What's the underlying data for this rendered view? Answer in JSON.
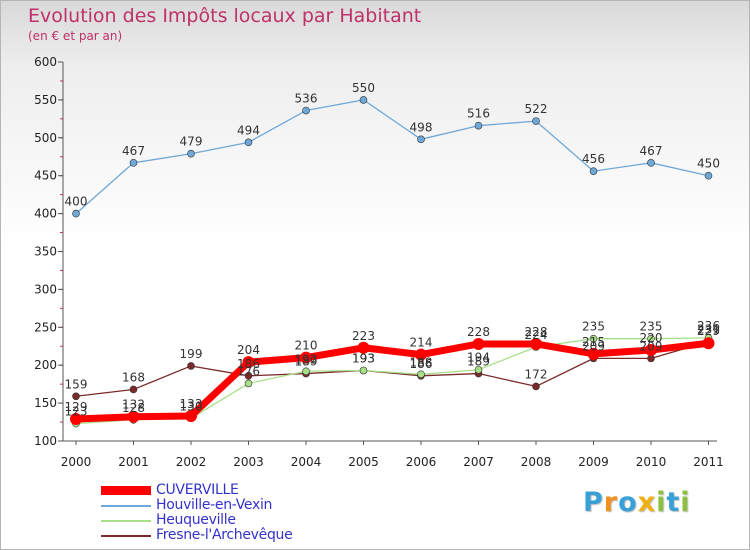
{
  "title": "Evolution des Impôts locaux par Habitant",
  "subtitle": "(en € et par an)",
  "brand": {
    "text": "Proxiti",
    "letters": [
      {
        "ch": "P",
        "color": "#3aa0d8"
      },
      {
        "ch": "r",
        "color": "#f09020"
      },
      {
        "ch": "o",
        "color": "#3aa0d8"
      },
      {
        "ch": "x",
        "color": "#f0b010"
      },
      {
        "ch": "i",
        "color": "#8cc040"
      },
      {
        "ch": "t",
        "color": "#3aa0d8"
      },
      {
        "ch": "i",
        "color": "#8cc040"
      }
    ]
  },
  "chart_data": {
    "type": "line",
    "x": [
      "2000",
      "2001",
      "2002",
      "2003",
      "2004",
      "2005",
      "2006",
      "2007",
      "2008",
      "2009",
      "2010",
      "2011"
    ],
    "yticks": [
      100,
      150,
      200,
      250,
      300,
      350,
      400,
      450,
      500,
      550,
      600
    ],
    "ylim": [
      100,
      600
    ],
    "grid": false,
    "legend_position": "bottom-left",
    "series": [
      {
        "name": "CUVERVILLE",
        "color": "#ff0000",
        "values": [
          129,
          132,
          133,
          204,
          210,
          223,
          214,
          228,
          228,
          215,
          220,
          229
        ],
        "labels": [
          "129",
          "132",
          "133",
          "204",
          "210",
          "223",
          "214",
          "228",
          "228",
          "215",
          "220",
          "229"
        ]
      },
      {
        "name": "Houville-en-Vexin",
        "color": "#6ea8d8",
        "values": [
          400,
          467,
          479,
          494,
          536,
          550,
          498,
          516,
          522,
          456,
          467,
          450
        ],
        "labels": [
          "400",
          "467",
          "479",
          "494",
          "536",
          "550",
          "498",
          "516",
          "522",
          "456",
          "467",
          "450"
        ]
      },
      {
        "name": "Heuqueville",
        "color": "#a8e088",
        "values": [
          123,
          128,
          130,
          176,
          192,
          193,
          188,
          194,
          224,
          235,
          235,
          236
        ],
        "labels": [
          "123",
          "128",
          "130",
          "176",
          "192",
          "193",
          "188",
          "194",
          "224",
          "235",
          "235",
          "236"
        ]
      },
      {
        "name": "Fresne-l'Archevêque",
        "color": "#7a2a2a",
        "values": [
          159,
          168,
          199,
          186,
          189,
          193,
          186,
          189,
          172,
          209,
          209,
          231
        ],
        "labels": [
          "159",
          "168",
          "199",
          "186",
          "189",
          "193",
          "186",
          "189",
          "172",
          "209",
          "209",
          "231"
        ]
      }
    ]
  }
}
